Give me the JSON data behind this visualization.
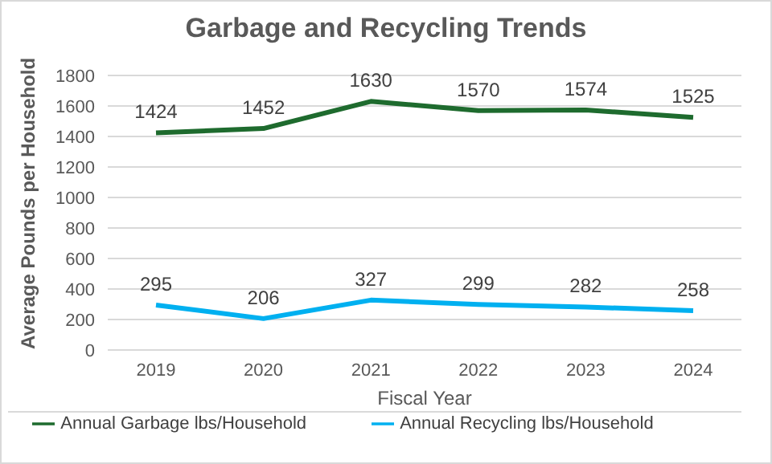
{
  "chart_data": {
    "type": "line",
    "title": "Garbage and Recycling Trends",
    "xlabel": "Fiscal Year",
    "ylabel": "Average Pounds per Household",
    "categories": [
      "2019",
      "2020",
      "2021",
      "2022",
      "2023",
      "2024"
    ],
    "series": [
      {
        "name": "Annual Garbage lbs/Household",
        "color": "#1e6b2e",
        "values": [
          1424,
          1452,
          1630,
          1570,
          1574,
          1525
        ]
      },
      {
        "name": "Annual Recycling lbs/Household",
        "color": "#00b0f0",
        "values": [
          295,
          206,
          327,
          299,
          282,
          258
        ]
      }
    ],
    "ylim": [
      0,
      1800
    ],
    "yticks": [
      0,
      200,
      400,
      600,
      800,
      1000,
      1200,
      1400,
      1600,
      1800
    ],
    "grid": "y",
    "legend": "bottom",
    "marker": "none",
    "line_style": "solid",
    "data_labels": true
  }
}
